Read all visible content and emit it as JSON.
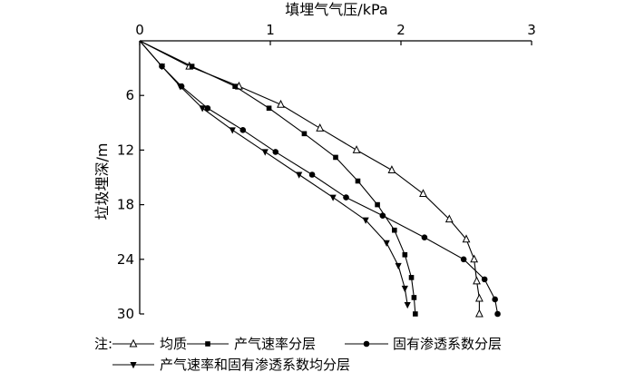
{
  "chart_data": {
    "type": "line",
    "xlabel": "填埋气气压/kPa",
    "ylabel": "垃圾埋深/m",
    "x_axis_position": "top",
    "y_axis_inverted": true,
    "xlim": [
      0,
      3
    ],
    "ylim": [
      0,
      30
    ],
    "x_ticks": [
      "0",
      "1",
      "2",
      "3"
    ],
    "y_ticks": [
      "6",
      "12",
      "18",
      "24",
      "30"
    ],
    "grid": false,
    "legend_position": "bottom",
    "legend_prefix": "注:",
    "series": [
      {
        "name": "均质",
        "marker": "triangle-open",
        "points": [
          [
            0,
            0
          ],
          [
            0.38,
            2.8
          ],
          [
            0.76,
            5
          ],
          [
            1.08,
            7
          ],
          [
            1.38,
            9.6
          ],
          [
            1.66,
            12
          ],
          [
            1.93,
            14.2
          ],
          [
            2.17,
            16.8
          ],
          [
            2.37,
            19.6
          ],
          [
            2.5,
            21.8
          ],
          [
            2.56,
            24
          ],
          [
            2.58,
            26.4
          ],
          [
            2.6,
            28.3
          ],
          [
            2.6,
            30
          ]
        ]
      },
      {
        "name": "产气速率分层",
        "marker": "square-filled",
        "points": [
          [
            0,
            0
          ],
          [
            0.4,
            2.8
          ],
          [
            0.73,
            5
          ],
          [
            0.99,
            7.4
          ],
          [
            1.26,
            10.2
          ],
          [
            1.5,
            12.8
          ],
          [
            1.67,
            15.4
          ],
          [
            1.82,
            18
          ],
          [
            1.95,
            20.8
          ],
          [
            2.03,
            23.5
          ],
          [
            2.08,
            26
          ],
          [
            2.1,
            28.2
          ],
          [
            2.11,
            30
          ]
        ]
      },
      {
        "name": "固有渗透系数分层",
        "marker": "circle-filled",
        "points": [
          [
            0,
            0
          ],
          [
            0.17,
            2.8
          ],
          [
            0.32,
            5
          ],
          [
            0.52,
            7.4
          ],
          [
            0.79,
            9.8
          ],
          [
            1.04,
            12.2
          ],
          [
            1.32,
            14.7
          ],
          [
            1.58,
            17.2
          ],
          [
            1.86,
            19.2
          ],
          [
            2.18,
            21.6
          ],
          [
            2.48,
            24
          ],
          [
            2.64,
            26.2
          ],
          [
            2.72,
            28.4
          ],
          [
            2.74,
            30
          ]
        ]
      },
      {
        "name": "产气速率和固有渗透系数均分层",
        "marker": "triangle-down-filled",
        "points": [
          [
            0,
            0
          ],
          [
            0.17,
            2.8
          ],
          [
            0.31,
            5
          ],
          [
            0.48,
            7.4
          ],
          [
            0.71,
            9.8
          ],
          [
            0.96,
            12.2
          ],
          [
            1.22,
            14.7
          ],
          [
            1.48,
            17.2
          ],
          [
            1.73,
            19.7
          ],
          [
            1.89,
            22.2
          ],
          [
            1.98,
            24.7
          ],
          [
            2.03,
            27.2
          ],
          [
            2.05,
            29
          ]
        ]
      }
    ]
  }
}
